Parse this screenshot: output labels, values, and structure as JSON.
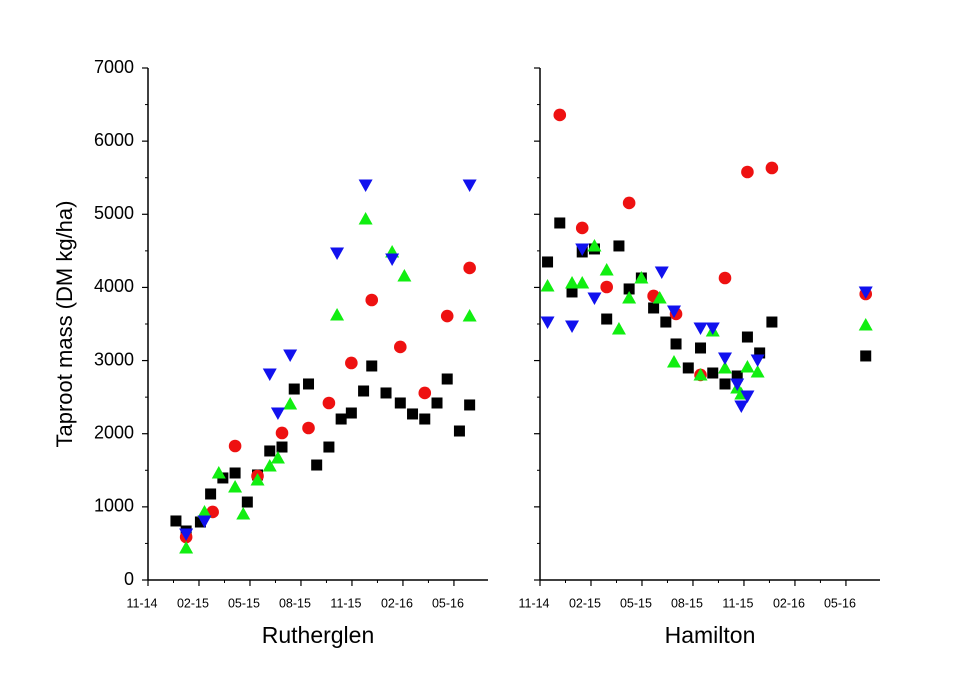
{
  "chart_data": [
    {
      "type": "scatter",
      "xlabel": "Rutherglen",
      "ylabel": "Taproot mass (DM kg/ha)",
      "xlim": [
        2014.833,
        2016.5
      ],
      "ylim": [
        0,
        7000
      ],
      "xticks": [
        {
          "value": 2014.833,
          "label": "11-14"
        },
        {
          "value": 2015.083,
          "label": "02-15"
        },
        {
          "value": 2015.333,
          "label": "05-15"
        },
        {
          "value": 2015.583,
          "label": "08-15"
        },
        {
          "value": 2015.833,
          "label": "11-15"
        },
        {
          "value": 2016.083,
          "label": "02-16"
        },
        {
          "value": 2016.333,
          "label": "05-16"
        }
      ],
      "yticks": [
        0,
        1000,
        2000,
        3000,
        4000,
        5000,
        6000,
        7000
      ],
      "series": [
        {
          "marker": "square",
          "color": "#000000",
          "x": [
            2014.97,
            2015.02,
            2015.09,
            2015.14,
            2015.2,
            2015.26,
            2015.32,
            2015.37,
            2015.43,
            2015.49,
            2015.55,
            2015.62,
            2015.66,
            2015.72,
            2015.78,
            2015.83,
            2015.89,
            2015.93,
            2016.0,
            2016.07,
            2016.13,
            2016.19,
            2016.25,
            2016.3,
            2016.36,
            2016.41
          ],
          "values": [
            807,
            670,
            793,
            1176,
            1395,
            1463,
            1066,
            1436,
            1764,
            1818,
            2611,
            2680,
            1572,
            1818,
            2201,
            2283,
            2584,
            2926,
            2557,
            2420,
            2270,
            2201,
            2420,
            2748,
            2037,
            2393
          ]
        },
        {
          "marker": "circle",
          "color": "#ee1111",
          "x": [
            2015.02,
            2015.15,
            2015.26,
            2015.37,
            2015.49,
            2015.62,
            2015.72,
            2015.83,
            2015.93,
            2016.07,
            2016.19,
            2016.3,
            2016.41
          ],
          "values": [
            588,
            930,
            1832,
            1422,
            2010,
            2078,
            2420,
            2967,
            3828,
            3186,
            2557,
            3609,
            4266
          ]
        },
        {
          "marker": "triangle-up",
          "color": "#11ee11",
          "x": [
            2015.02,
            2015.11,
            2015.18,
            2015.26,
            2015.3,
            2015.37,
            2015.43,
            2015.47,
            2015.53,
            2015.76,
            2015.9,
            2016.03,
            2016.09,
            2016.41
          ],
          "values": [
            437,
            930,
            1463,
            1272,
            902,
            1367,
            1559,
            1668,
            2406,
            3623,
            4936,
            4485,
            4156,
            3609
          ]
        },
        {
          "marker": "triangle-down",
          "color": "#1111ee",
          "x": [
            2015.02,
            2015.11,
            2015.43,
            2015.47,
            2015.53,
            2015.76,
            2015.9,
            2016.03,
            2016.41
          ],
          "values": [
            629,
            807,
            2817,
            2283,
            3076,
            4471,
            5400,
            4389,
            5400
          ]
        }
      ]
    },
    {
      "type": "scatter",
      "xlabel": "Hamilton",
      "xlim": [
        2014.833,
        2016.5
      ],
      "ylim": [
        0,
        7000
      ],
      "xticks": [
        {
          "value": 2014.833,
          "label": "11-14"
        },
        {
          "value": 2015.083,
          "label": "02-15"
        },
        {
          "value": 2015.333,
          "label": "05-15"
        },
        {
          "value": 2015.583,
          "label": "08-15"
        },
        {
          "value": 2015.833,
          "label": "11-15"
        },
        {
          "value": 2016.083,
          "label": "02-16"
        },
        {
          "value": 2016.333,
          "label": "05-16"
        }
      ],
      "series": [
        {
          "marker": "square",
          "color": "#000000",
          "x": [
            2014.87,
            2014.93,
            2014.99,
            2015.04,
            2015.1,
            2015.16,
            2015.22,
            2015.27,
            2015.33,
            2015.39,
            2015.45,
            2015.5,
            2015.56,
            2015.62,
            2015.68,
            2015.74,
            2015.8,
            2015.85,
            2015.91,
            2015.97,
            2016.43
          ],
          "values": [
            4348,
            4881,
            3938,
            4485,
            4526,
            3568,
            4567,
            3979,
            4129,
            3719,
            3527,
            3227,
            2899,
            3172,
            2830,
            2680,
            2789,
            3322,
            3104,
            3527,
            3063
          ]
        },
        {
          "marker": "circle",
          "color": "#ee1111",
          "x": [
            2014.93,
            2015.04,
            2015.16,
            2015.27,
            2015.39,
            2015.5,
            2015.62,
            2015.74,
            2015.85,
            2015.97,
            2016.43
          ],
          "values": [
            6358,
            4813,
            4006,
            5155,
            3883,
            3637,
            2803,
            4129,
            5578,
            5633,
            3910
          ]
        },
        {
          "marker": "triangle-up",
          "color": "#11ee11",
          "x": [
            2014.87,
            2014.99,
            2015.04,
            2015.1,
            2015.16,
            2015.22,
            2015.27,
            2015.33,
            2015.42,
            2015.49,
            2015.62,
            2015.68,
            2015.74,
            2015.8,
            2015.82,
            2015.85,
            2015.9,
            2016.43
          ],
          "values": [
            4020,
            4061,
            4061,
            4567,
            4238,
            3432,
            3856,
            4129,
            3856,
            2981,
            2803,
            3405,
            2899,
            2625,
            2543,
            2912,
            2844,
            3486
          ]
        },
        {
          "marker": "triangle-down",
          "color": "#1111ee",
          "x": [
            2014.87,
            2014.99,
            2015.04,
            2015.1,
            2015.43,
            2015.49,
            2015.62,
            2015.68,
            2015.74,
            2015.8,
            2015.82,
            2015.85,
            2015.9,
            2016.43
          ],
          "values": [
            3527,
            3473,
            4526,
            3856,
            4211,
            3678,
            3445,
            3445,
            3035,
            2680,
            2379,
            2516,
            3008,
            3938
          ]
        }
      ]
    }
  ]
}
